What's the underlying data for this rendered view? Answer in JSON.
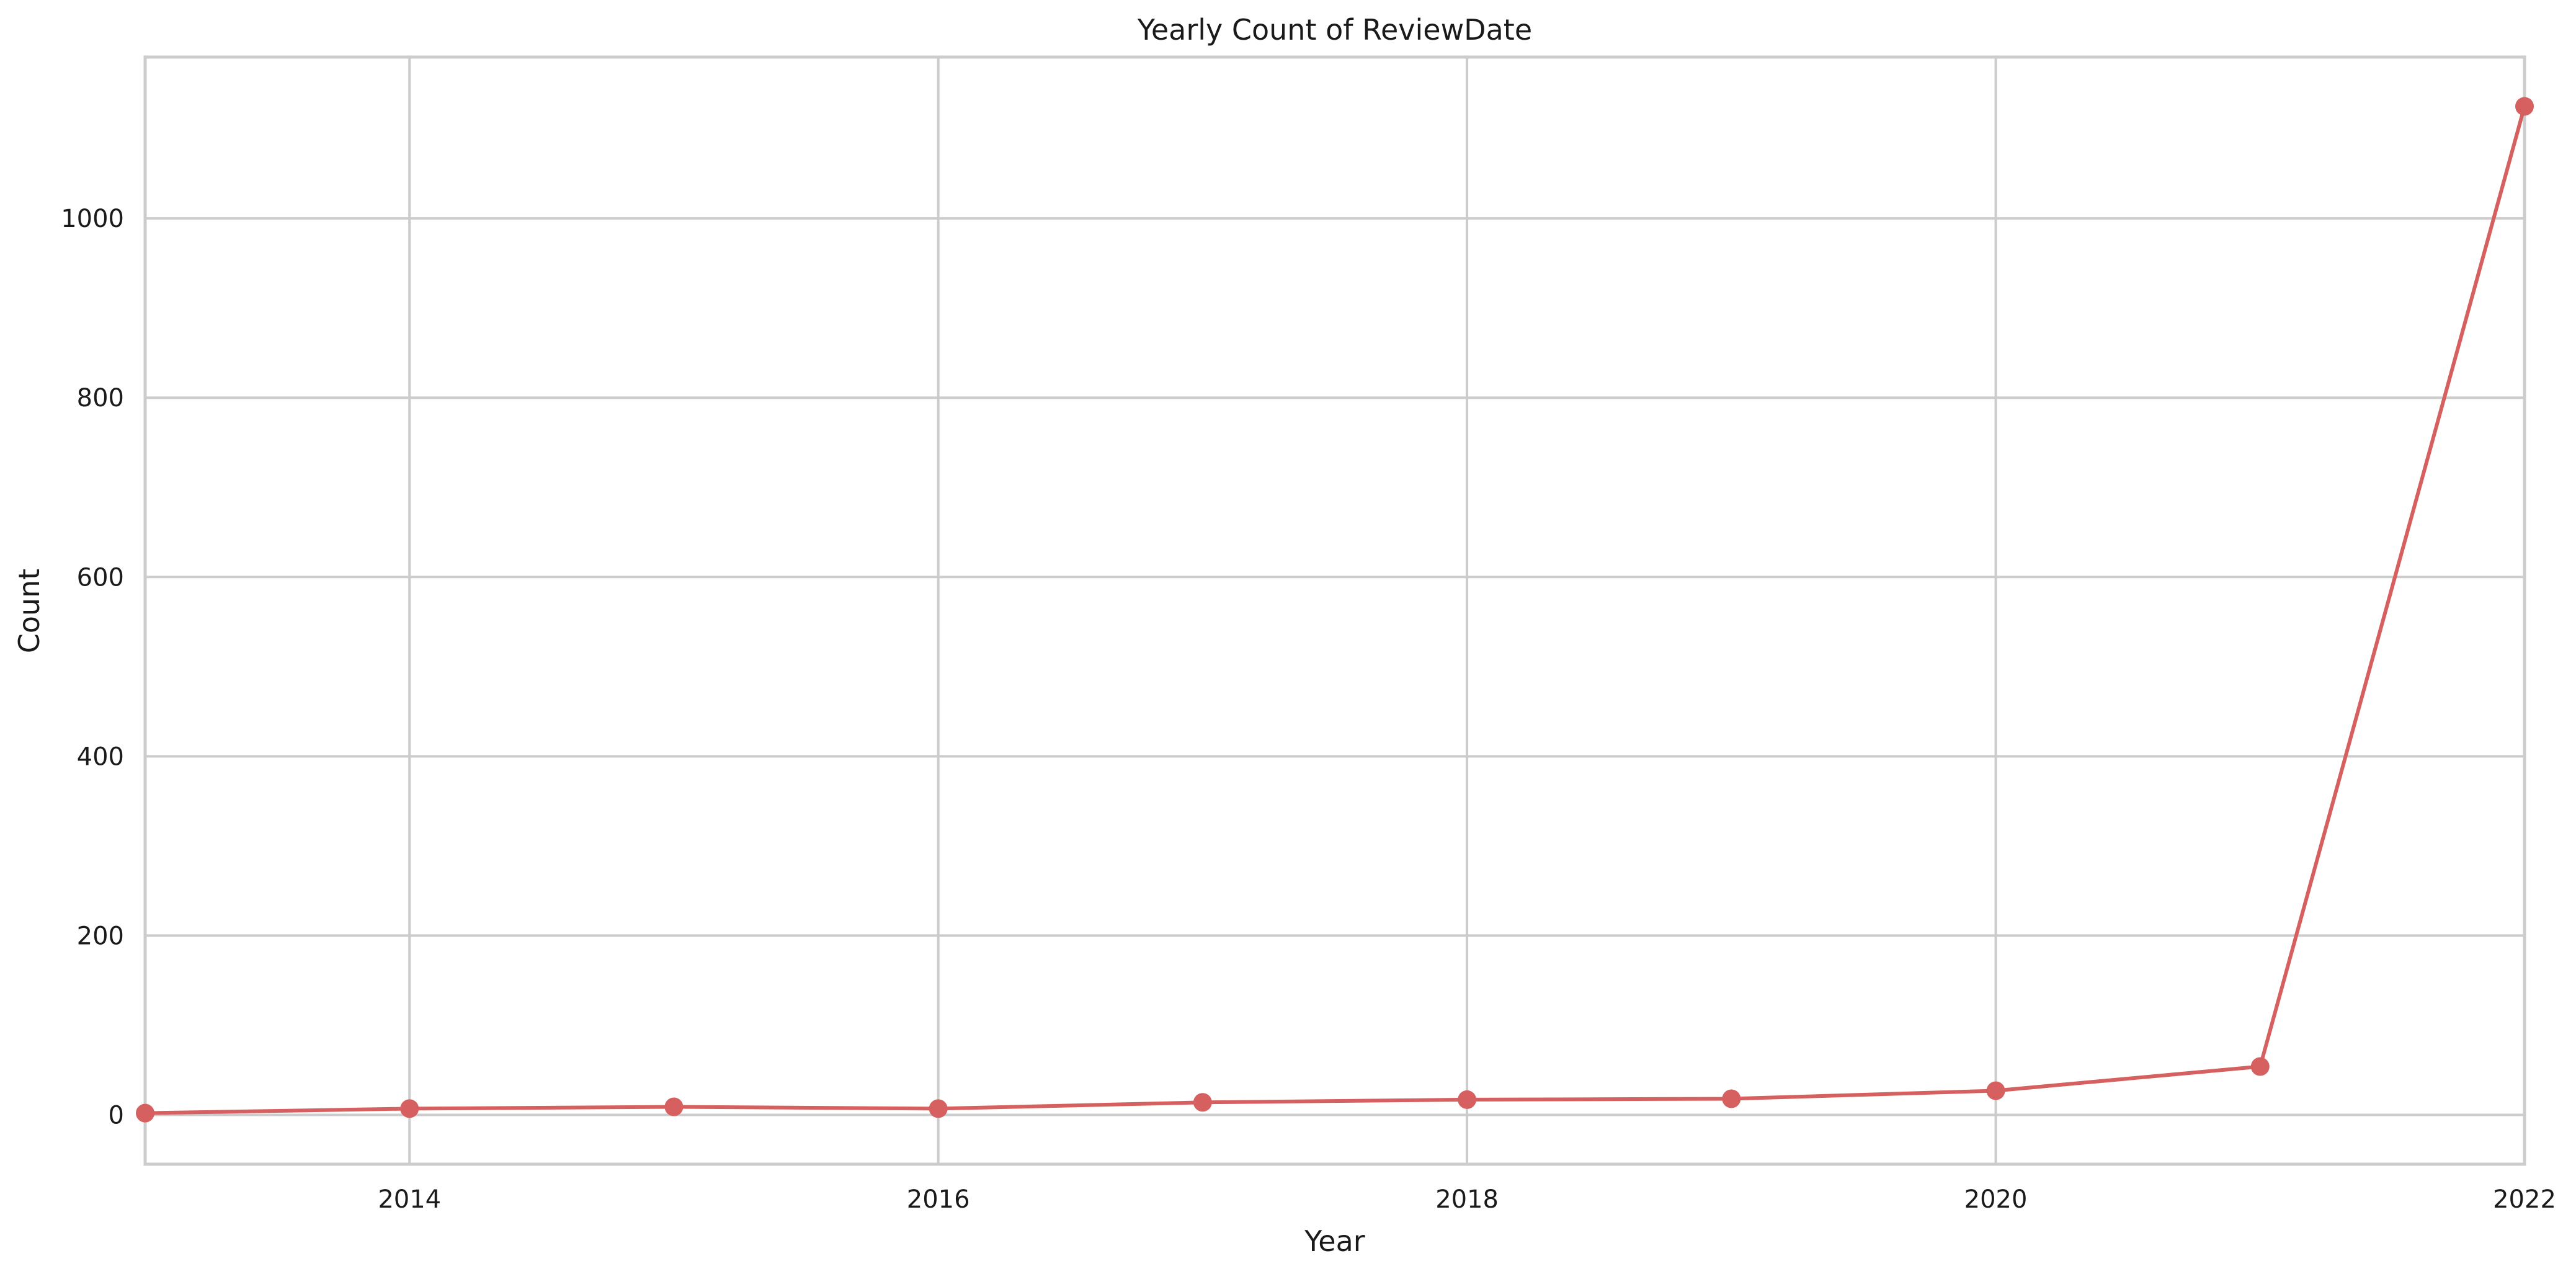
{
  "chart_data": {
    "type": "line",
    "title": "Yearly Count of ReviewDate",
    "xlabel": "Year",
    "ylabel": "Count",
    "x": [
      2013,
      2014,
      2015,
      2016,
      2017,
      2018,
      2019,
      2020,
      2021,
      2022
    ],
    "series": [
      {
        "values": [
          2,
          7,
          9,
          7,
          14,
          17,
          18,
          27,
          54,
          1125
        ],
        "color": "#d65f5f"
      }
    ],
    "xlim": [
      2013,
      2022
    ],
    "ylim": [
      -55,
      1180
    ],
    "xticks": [
      2014,
      2016,
      2018,
      2020,
      2022
    ],
    "xtick_labels": [
      "2014",
      "2016",
      "2018",
      "2020",
      "2022"
    ],
    "yticks": [
      0,
      200,
      400,
      600,
      800,
      1000
    ],
    "ytick_labels": [
      "0",
      "200",
      "400",
      "600",
      "800",
      "1000"
    ],
    "grid": true,
    "legend": "none",
    "colors": {
      "line": "#d65f5f",
      "grid": "#cccccc",
      "text": "#1a1a1a",
      "background": "#ffffff"
    }
  }
}
